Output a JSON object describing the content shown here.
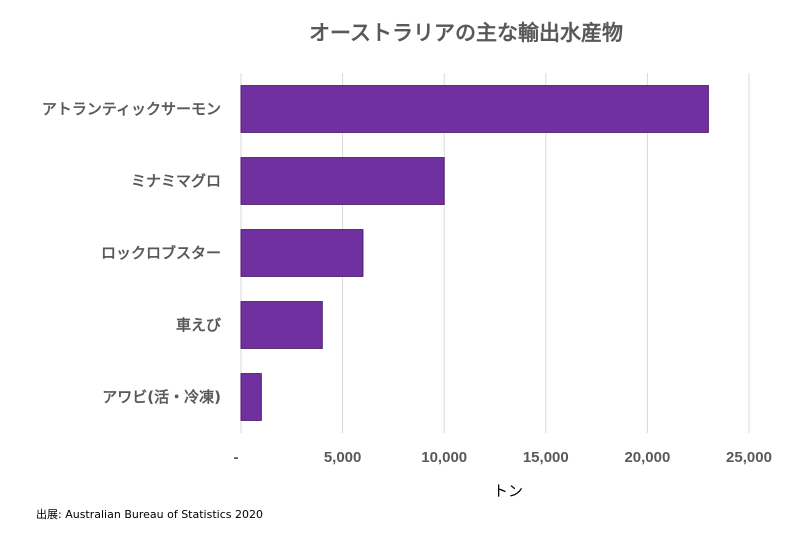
{
  "chart_data": {
    "type": "bar",
    "orientation": "horizontal",
    "title": "オーストラリアの主な輸出水産物",
    "categories": [
      "アトランティックサーモン",
      "ミナミマグロ",
      "ロックロブスター",
      "車えび",
      "アワビ(活・冷凍)"
    ],
    "values": [
      23000,
      10000,
      6000,
      4000,
      1000
    ],
    "xlabel": "トン",
    "ylabel": "",
    "xlim": [
      0,
      25000
    ],
    "ticks": [
      0,
      5000,
      10000,
      15000,
      20000,
      25000
    ],
    "tick_labels": [
      "-",
      "5,000",
      "10,000",
      "15,000",
      "20,000",
      "25,000"
    ],
    "grid": true,
    "bar_color": "#7030a0",
    "source": "出展: Australian Bureau of Statistics 2020"
  }
}
